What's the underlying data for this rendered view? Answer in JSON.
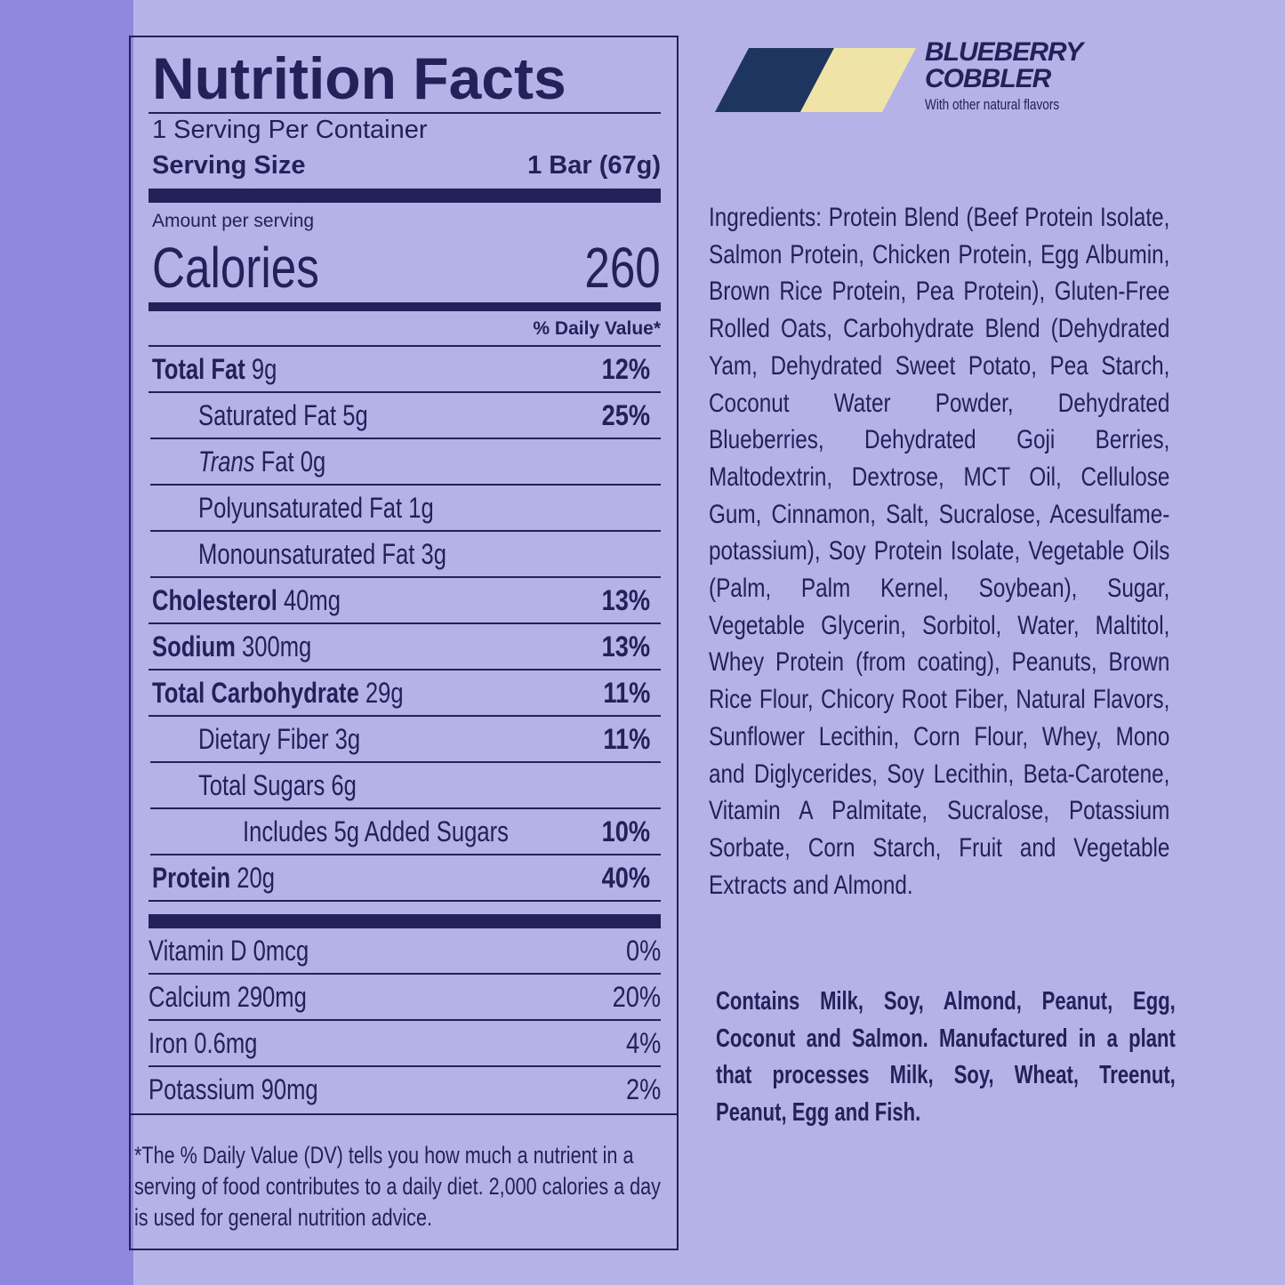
{
  "nutrition_facts": {
    "title": "Nutrition Facts",
    "servings": "1 Serving Per Container",
    "serving_size_label": "Serving Size",
    "serving_size": "1 Bar (67g)",
    "amount_per_serving": "Amount per serving",
    "calories_label": "Calories",
    "calories": 260,
    "daily_value_header": "% Daily Value*",
    "nutrients": [
      {
        "name": "Total Fat",
        "amount": "9g",
        "dv": "12%",
        "sub": [
          {
            "name": "Saturated Fat",
            "amount": "5g",
            "dv": "25%"
          },
          {
            "italic": "Trans",
            "name": "Fat",
            "amount": "0g"
          },
          {
            "name": "Polyunsaturated Fat",
            "amount": "1g"
          },
          {
            "name": "Monounsaturated Fat",
            "amount": "3g"
          }
        ]
      },
      {
        "name": "Cholesterol",
        "amount": "40mg",
        "dv": "13%"
      },
      {
        "name": "Sodium",
        "amount": "300mg",
        "dv": "13%"
      },
      {
        "name": "Total Carbohydrate",
        "amount": "29g",
        "dv": "11%",
        "sub": [
          {
            "name": "Dietary Fiber",
            "amount": "3g",
            "dv": "11%"
          },
          {
            "name": "Total Sugars",
            "amount": "6g",
            "sub": [
              {
                "name": "Includes 5g Added Sugars",
                "dv": "10%"
              }
            ]
          }
        ]
      },
      {
        "name": "Protein",
        "amount": "20g",
        "dv": "40%"
      }
    ],
    "vitamins": [
      {
        "name": "Vitamin D",
        "amount": "0mcg",
        "dv": "0%"
      },
      {
        "name": "Calcium",
        "amount": "290mg",
        "dv": "20%"
      },
      {
        "name": "Iron",
        "amount": "0.6mg",
        "dv": "4%"
      },
      {
        "name": "Potassium",
        "amount": "90mg",
        "dv": "2%"
      }
    ],
    "footnote": "*The % Daily Value (DV) tells you how much a nutrient in a serving of food contributes to a daily diet. 2,000 calories a day is used for general nutrition advice."
  },
  "flavor": {
    "name": "BLUEBERRY COBBLER",
    "note": "With other natural flavors"
  },
  "ingredients": "Ingredients: Protein Blend (Beef Protein Isolate, Salmon Protein, Chicken Protein, Egg Albumin, Brown Rice Protein, Pea Protein), Gluten-Free Rolled Oats, Carbohydrate Blend (Dehydrated Yam, Dehydrated Sweet Potato, Pea Starch, Coconut Water Powder, Dehydrated Blueberries, Dehydrated Goji Berries, Maltodextrin, Dextrose, MCT Oil, Cellulose Gum, Cinnamon, Salt, Sucralose, Acesulfame-potassium), Soy Protein Isolate, Vegetable Oils (Palm, Palm Kernel, Soybean), Sugar, Vegetable Glycerin, Sorbitol, Water, Maltitol, Whey Protein (from coating), Peanuts, Brown Rice Flour, Chicory Root Fiber, Natural Flavors, Sunflower Lecithin, Corn Flour, Whey, Mono and Diglycerides, Soy Lecithin, Beta-Carotene, Vitamin A Palmitate, Sucralose, Potassium Sorbate, Corn Starch, Fruit and Vegetable Extracts and Almond.",
  "allergens": "Contains Milk, Soy, Almond, Peanut, Egg, Coconut and Salmon. Manufactured in a plant that processes Milk, Soy, Wheat, Treenut, Peanut, Egg and Fish."
}
